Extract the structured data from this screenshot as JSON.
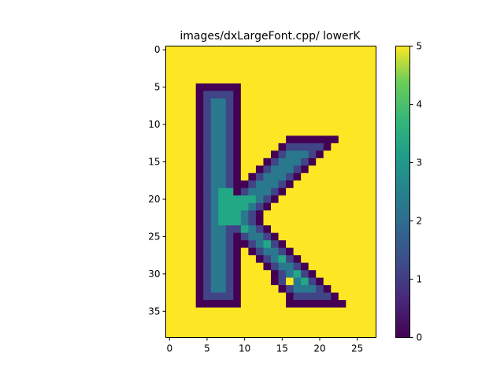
{
  "chart_data": {
    "type": "heatmap",
    "title": "images/dxLargeFont.cpp/ lowerK",
    "xlabel": "",
    "ylabel": "",
    "colormap": "viridis",
    "vmin": 0,
    "vmax": 5,
    "rows": 39,
    "cols": 28,
    "xlim": [
      -0.5,
      27.5
    ],
    "ylim": [
      38.5,
      -0.5
    ],
    "x_ticks": [
      0,
      5,
      10,
      15,
      20,
      25
    ],
    "y_ticks": [
      0,
      5,
      10,
      15,
      20,
      25,
      30,
      35
    ],
    "colorbar_ticks": [
      0,
      1,
      2,
      3,
      4,
      5
    ],
    "grid": false,
    "background_value": 5,
    "colors": {
      "0": "#440154",
      "1": "#414487",
      "2": "#2a788e",
      "3": "#22a884",
      "4": "#7ad151",
      "5": "#fde725"
    },
    "shapes": [
      {
        "value": 0,
        "kind": "rect",
        "rows": [
          5,
          34
        ],
        "cols": [
          4,
          9
        ]
      },
      {
        "value": 1,
        "kind": "rect",
        "rows": [
          6,
          33
        ],
        "cols": [
          5,
          8
        ]
      },
      {
        "value": 2,
        "kind": "rect",
        "rows": [
          7,
          32
        ],
        "cols": [
          6,
          7
        ]
      },
      {
        "value": 3,
        "kind": "rect",
        "rows": [
          19,
          23
        ],
        "cols": [
          7,
          8
        ]
      },
      {
        "value": 3,
        "kind": "rect",
        "rows": [
          20,
          22
        ],
        "cols": [
          9,
          11
        ]
      },
      {
        "value": 0,
        "kind": "rect",
        "rows": [
          34,
          34
        ],
        "cols": [
          16,
          23
        ]
      },
      {
        "value": 0,
        "kind": "cells",
        "points": [
          [
            12,
            16
          ],
          [
            12,
            17
          ],
          [
            12,
            18
          ],
          [
            12,
            19
          ],
          [
            12,
            20
          ],
          [
            12,
            21
          ],
          [
            12,
            22
          ],
          [
            13,
            15
          ],
          [
            13,
            21
          ],
          [
            14,
            14
          ],
          [
            14,
            20
          ],
          [
            15,
            13
          ],
          [
            15,
            19
          ],
          [
            16,
            12
          ],
          [
            16,
            18
          ],
          [
            17,
            11
          ],
          [
            17,
            17
          ],
          [
            18,
            10
          ],
          [
            18,
            16
          ],
          [
            19,
            9
          ],
          [
            19,
            15
          ],
          [
            20,
            14
          ],
          [
            21,
            13
          ],
          [
            22,
            12
          ],
          [
            23,
            12
          ],
          [
            24,
            13
          ],
          [
            25,
            14
          ],
          [
            26,
            15
          ],
          [
            27,
            16
          ],
          [
            28,
            17
          ],
          [
            29,
            18
          ],
          [
            30,
            19
          ],
          [
            31,
            20
          ],
          [
            32,
            21
          ],
          [
            33,
            22
          ],
          [
            31,
            14
          ],
          [
            32,
            15
          ],
          [
            33,
            16
          ],
          [
            25,
            9
          ],
          [
            26,
            10
          ],
          [
            27,
            11
          ],
          [
            28,
            12
          ],
          [
            29,
            13
          ],
          [
            30,
            14
          ]
        ]
      },
      {
        "value": 1,
        "kind": "cells",
        "points": [
          [
            13,
            16
          ],
          [
            13,
            17
          ],
          [
            13,
            18
          ],
          [
            13,
            19
          ],
          [
            13,
            20
          ],
          [
            14,
            15
          ],
          [
            14,
            19
          ],
          [
            15,
            14
          ],
          [
            15,
            18
          ],
          [
            16,
            13
          ],
          [
            16,
            17
          ],
          [
            17,
            12
          ],
          [
            17,
            16
          ],
          [
            18,
            11
          ],
          [
            18,
            15
          ],
          [
            19,
            10
          ],
          [
            19,
            14
          ],
          [
            20,
            13
          ],
          [
            21,
            12
          ],
          [
            22,
            11
          ],
          [
            23,
            11
          ],
          [
            24,
            12
          ],
          [
            25,
            13
          ],
          [
            26,
            14
          ],
          [
            27,
            15
          ],
          [
            28,
            16
          ],
          [
            29,
            17
          ],
          [
            30,
            18
          ],
          [
            31,
            19
          ],
          [
            32,
            20
          ],
          [
            33,
            21
          ],
          [
            33,
            17
          ],
          [
            33,
            18
          ],
          [
            33,
            19
          ],
          [
            33,
            20
          ],
          [
            32,
            16
          ],
          [
            31,
            15
          ],
          [
            24,
            9
          ],
          [
            25,
            10
          ],
          [
            26,
            11
          ],
          [
            27,
            12
          ],
          [
            28,
            13
          ],
          [
            29,
            14
          ],
          [
            30,
            15
          ]
        ]
      },
      {
        "value": 2,
        "kind": "cells",
        "points": [
          [
            14,
            16
          ],
          [
            14,
            17
          ],
          [
            14,
            18
          ],
          [
            15,
            15
          ],
          [
            15,
            16
          ],
          [
            15,
            17
          ],
          [
            16,
            14
          ],
          [
            16,
            15
          ],
          [
            16,
            16
          ],
          [
            17,
            13
          ],
          [
            17,
            14
          ],
          [
            17,
            15
          ],
          [
            18,
            12
          ],
          [
            18,
            13
          ],
          [
            18,
            14
          ],
          [
            19,
            11
          ],
          [
            19,
            12
          ],
          [
            19,
            13
          ],
          [
            20,
            12
          ],
          [
            21,
            11
          ],
          [
            22,
            10
          ],
          [
            23,
            10
          ],
          [
            24,
            10
          ],
          [
            24,
            11
          ],
          [
            25,
            11
          ],
          [
            25,
            12
          ],
          [
            26,
            12
          ],
          [
            26,
            13
          ],
          [
            27,
            13
          ],
          [
            27,
            14
          ],
          [
            28,
            14
          ],
          [
            28,
            15
          ],
          [
            29,
            15
          ],
          [
            29,
            16
          ],
          [
            30,
            16
          ],
          [
            30,
            17
          ],
          [
            31,
            17
          ],
          [
            31,
            18
          ],
          [
            32,
            18
          ],
          [
            32,
            19
          ],
          [
            32,
            17
          ]
        ]
      },
      {
        "value": 3,
        "kind": "cells",
        "points": [
          [
            23,
            9
          ],
          [
            24,
            10
          ],
          [
            26,
            13
          ],
          [
            28,
            15
          ],
          [
            30,
            17
          ],
          [
            31,
            18
          ]
        ]
      }
    ]
  }
}
